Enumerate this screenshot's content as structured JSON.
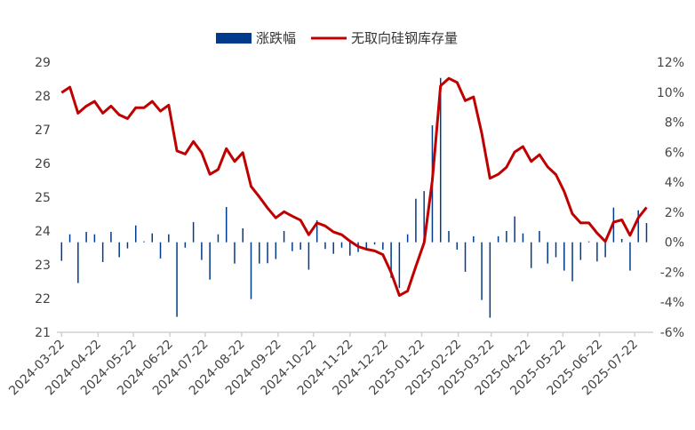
{
  "chart_data": {
    "type": "bar+line",
    "legend_position": "top",
    "grid": false,
    "colors": {
      "bar": "#003A8C",
      "line": "#C00000"
    },
    "series": [
      {
        "name": "涨跌幅",
        "type": "bar",
        "axis": "right",
        "values": [
          -1.24,
          0.53,
          -2.72,
          0.69,
          0.53,
          -1.32,
          0.69,
          -1.0,
          -0.41,
          1.12,
          0.06,
          0.59,
          -1.08,
          0.53,
          -4.97,
          -0.36,
          1.34,
          -1.18,
          -2.49,
          0.53,
          2.35,
          -1.42,
          0.93,
          -3.79,
          -1.42,
          -1.4,
          -1.12,
          0.75,
          -0.59,
          -0.49,
          -1.83,
          1.46,
          -0.45,
          -0.77,
          -0.36,
          -0.89,
          -0.65,
          -0.43,
          -0.15,
          -0.49,
          -2.37,
          -3.05,
          0.53,
          2.9,
          3.41,
          7.79,
          10.95,
          0.75,
          -0.49,
          -1.97,
          0.4,
          -3.85,
          -5.03,
          0.4,
          0.75,
          1.72,
          0.59,
          -1.72,
          0.75,
          -1.42,
          -1.0,
          -1.89,
          -2.6,
          -1.18,
          0.06,
          -1.28,
          -1.0,
          2.31,
          0.22,
          -1.89,
          2.13,
          1.28
        ]
      },
      {
        "name": "无取向硅钢库存量",
        "type": "line",
        "axis": "left",
        "values": [
          28.1,
          28.26,
          27.49,
          27.7,
          27.84,
          27.49,
          27.7,
          27.44,
          27.33,
          27.65,
          27.65,
          27.84,
          27.55,
          27.73,
          26.37,
          26.28,
          26.65,
          26.32,
          25.68,
          25.82,
          26.44,
          26.06,
          26.32,
          25.32,
          25.01,
          24.68,
          24.39,
          24.57,
          24.44,
          24.32,
          23.89,
          24.24,
          24.15,
          23.97,
          23.89,
          23.7,
          23.54,
          23.46,
          23.41,
          23.3,
          22.77,
          22.09,
          22.22,
          22.95,
          23.65,
          25.49,
          28.3,
          28.52,
          28.4,
          27.86,
          27.97,
          26.89,
          25.56,
          25.68,
          25.89,
          26.34,
          26.5,
          26.06,
          26.26,
          25.9,
          25.67,
          25.17,
          24.51,
          24.24,
          24.24,
          23.94,
          23.69,
          24.26,
          24.33,
          23.87,
          24.39,
          24.7
        ]
      }
    ],
    "x": [
      "2024-03-22",
      "2024-03-29",
      "2024-04-05",
      "2024-04-12",
      "2024-04-19",
      "2024-04-26",
      "2024-05-03",
      "2024-05-10",
      "2024-05-17",
      "2024-05-24",
      "2024-05-31",
      "2024-06-07",
      "2024-06-14",
      "2024-06-21",
      "2024-06-28",
      "2024-07-05",
      "2024-07-12",
      "2024-07-19",
      "2024-07-26",
      "2024-08-02",
      "2024-08-09",
      "2024-08-16",
      "2024-08-23",
      "2024-08-30",
      "2024-09-06",
      "2024-09-13",
      "2024-09-20",
      "2024-09-27",
      "2024-10-04",
      "2024-10-11",
      "2024-10-18",
      "2024-10-25",
      "2024-11-01",
      "2024-11-08",
      "2024-11-15",
      "2024-11-22",
      "2024-11-29",
      "2024-12-06",
      "2024-12-13",
      "2024-12-20",
      "2024-12-27",
      "2025-01-03",
      "2025-01-10",
      "2025-01-17",
      "2025-01-24",
      "2025-01-31",
      "2025-02-07",
      "2025-02-14",
      "2025-02-21",
      "2025-02-28",
      "2025-03-07",
      "2025-03-14",
      "2025-03-21",
      "2025-03-28",
      "2025-04-04",
      "2025-04-11",
      "2025-04-18",
      "2025-04-25",
      "2025-05-02",
      "2025-05-09",
      "2025-05-16",
      "2025-05-23",
      "2025-05-30",
      "2025-06-06",
      "2025-06-13",
      "2025-06-20",
      "2025-06-27",
      "2025-07-04",
      "2025-07-11",
      "2025-07-18",
      "2025-07-25",
      "2025-08-01"
    ],
    "x_tick_labels": [
      "2024-03-22",
      "2024-04-22",
      "2024-05-22",
      "2024-06-22",
      "2024-07-22",
      "2024-08-22",
      "2024-09-22",
      "2024-10-22",
      "2024-11-22",
      "2024-12-22",
      "2025-01-22",
      "2025-02-22",
      "2025-03-22",
      "2025-04-22",
      "2025-05-22",
      "2025-06-22",
      "2025-07-22"
    ],
    "y_left": {
      "range": [
        21,
        29
      ],
      "ticks": [
        "21",
        "22",
        "23",
        "24",
        "25",
        "26",
        "27",
        "28",
        "29"
      ]
    },
    "y_right": {
      "range": [
        -6,
        12
      ],
      "ticks": [
        "-6%",
        "-4%",
        "-2%",
        "0%",
        "2%",
        "4%",
        "6%",
        "8%",
        "10%",
        "12%"
      ]
    }
  }
}
